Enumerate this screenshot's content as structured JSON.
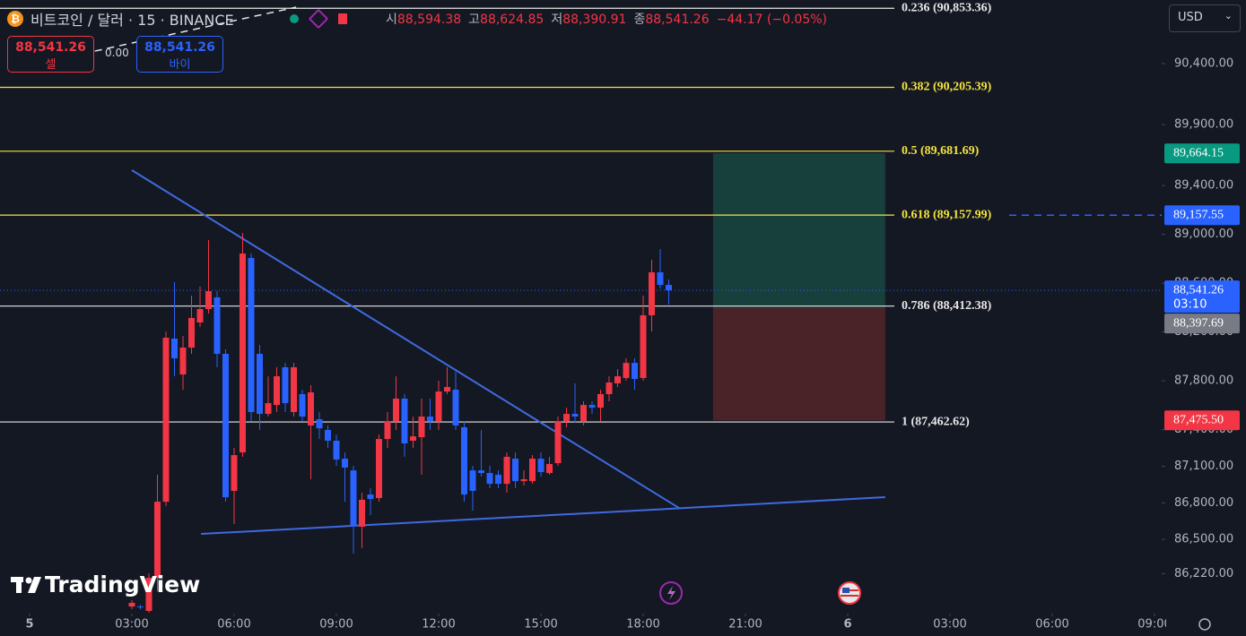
{
  "header": {
    "title": "비트코인 / 달러 · 15 · BINANCE",
    "ohlc": [
      {
        "label": "시",
        "value": "88,594.38"
      },
      {
        "label": "고",
        "value": "88,624.85"
      },
      {
        "label": "저",
        "value": "88,390.91"
      },
      {
        "label": "종",
        "value": "88,541.26"
      }
    ],
    "change": "−44.17 (−0.05%)"
  },
  "trade": {
    "sell_price": "88,541.26",
    "sell_label": "셀",
    "spread": "0.00",
    "buy_price": "88,541.26",
    "buy_label": "바이"
  },
  "currency": "USD",
  "brand": "TradingView",
  "chart_data": {
    "type": "candlestick",
    "up_color": "#f23645",
    "down_color": "#2962ff",
    "xlim": [
      -0.868,
      33.21
    ],
    "ylim": [
      85892,
      90921
    ],
    "xticks": [
      {
        "value": 0,
        "label": "5"
      },
      {
        "value": 3,
        "label": "03:00"
      },
      {
        "value": 6,
        "label": "06:00"
      },
      {
        "value": 9,
        "label": "09:00"
      },
      {
        "value": 12,
        "label": "12:00"
      },
      {
        "value": 15,
        "label": "15:00"
      },
      {
        "value": 18,
        "label": "18:00"
      },
      {
        "value": 21,
        "label": "21:00"
      },
      {
        "value": 24,
        "label": "6"
      },
      {
        "value": 27,
        "label": "03:00"
      },
      {
        "value": 30,
        "label": "06:00"
      },
      {
        "value": 33,
        "label": "09:00"
      }
    ],
    "yticks": [
      {
        "value": 90400,
        "label": "90,400.00"
      },
      {
        "value": 89900,
        "label": "89,900.00"
      },
      {
        "value": 89400,
        "label": "89,400.00"
      },
      {
        "value": 89000,
        "label": "89,000.00"
      },
      {
        "value": 88600,
        "label": "88,600.00"
      },
      {
        "value": 88200,
        "label": "88,200.00"
      },
      {
        "value": 87800,
        "label": "87,800.00"
      },
      {
        "value": 87400,
        "label": "87,400.00"
      },
      {
        "value": 87100,
        "label": "87,100.00"
      },
      {
        "value": 86800,
        "label": "86,800.00"
      },
      {
        "value": 86500,
        "label": "86,500.00"
      },
      {
        "value": 86220,
        "label": "86,220.00"
      }
    ],
    "x": [
      3,
      3.25,
      3.5,
      3.75,
      4,
      4.25,
      4.5,
      4.75,
      5,
      5.25,
      5.5,
      5.75,
      6,
      6.25,
      6.5,
      6.75,
      7,
      7.25,
      7.5,
      7.75,
      8,
      8.25,
      8.5,
      8.75,
      9,
      9.25,
      9.5,
      9.75,
      10,
      10.25,
      10.5,
      10.75,
      11,
      11.25,
      11.5,
      11.75,
      12,
      12.25,
      12.5,
      12.75,
      13,
      13.25,
      13.5,
      13.75,
      14,
      14.25,
      14.5,
      14.75,
      15,
      15.25,
      15.5,
      15.75,
      16,
      16.25,
      16.5,
      16.75,
      17,
      17.25,
      17.5,
      17.75,
      18,
      18.25,
      18.5,
      18.75
    ],
    "open": [
      85950,
      85950,
      85914,
      86185,
      86809,
      88146,
      87852,
      88072,
      88278,
      88388,
      88484,
      88021,
      86898,
      87213,
      88807,
      88021,
      87529,
      87602,
      87911,
      87544,
      87691,
      87434,
      87485,
      87397,
      87309,
      87162,
      87066,
      86604,
      86868,
      86839,
      87323,
      87470,
      87654,
      87309,
      87338,
      87507,
      87470,
      87712,
      87727,
      87419,
      87066,
      87066,
      87044,
      87030,
      86956,
      87162,
      86978,
      86978,
      87162,
      87044,
      87125,
      87470,
      87529,
      87470,
      87602,
      87580,
      87691,
      87779,
      87823,
      87947,
      87823,
      88337,
      88689,
      88586
    ],
    "high": [
      86002,
      85965,
      86222,
      87030,
      88204,
      88608,
      88168,
      88498,
      88572,
      88953,
      88535,
      88058,
      87250,
      89012,
      88843,
      88094,
      87837,
      87911,
      87947,
      87947,
      87727,
      87764,
      87544,
      87434,
      87360,
      87213,
      87103,
      86883,
      86920,
      87360,
      87544,
      87837,
      87691,
      87507,
      87654,
      87654,
      87801,
      87911,
      87874,
      87470,
      87103,
      87397,
      87103,
      87066,
      87213,
      87213,
      87066,
      87191,
      87213,
      87177,
      87507,
      87580,
      87779,
      87632,
      87632,
      87727,
      87837,
      87896,
      87984,
      87984,
      88498,
      88792,
      88880,
      88630
    ],
    "low": [
      85928,
      85928,
      85899,
      86075,
      86773,
      87837,
      87727,
      88021,
      88241,
      88351,
      87911,
      86809,
      86626,
      87177,
      87470,
      87397,
      87507,
      87544,
      87544,
      87507,
      87470,
      86993,
      87323,
      87250,
      87103,
      86809,
      86384,
      86428,
      86699,
      86809,
      87250,
      87397,
      87177,
      87250,
      87030,
      87397,
      87397,
      87691,
      87397,
      86809,
      86736,
      87015,
      86920,
      86920,
      86883,
      86920,
      86942,
      86956,
      87015,
      87030,
      87103,
      87419,
      87456,
      87434,
      87529,
      87470,
      87632,
      87749,
      87801,
      87727,
      87801,
      88204,
      88557,
      88425
    ],
    "close": [
      85980,
      85943,
      86185,
      86809,
      88153,
      87984,
      88072,
      88315,
      88388,
      88535,
      88021,
      86846,
      87191,
      88843,
      87544,
      87529,
      87617,
      87837,
      87617,
      87911,
      87507,
      87705,
      87411,
      87309,
      87155,
      87089,
      86611,
      86825,
      86832,
      87323,
      87470,
      87654,
      87287,
      87345,
      87507,
      87470,
      87712,
      87749,
      87434,
      86868,
      86898,
      87044,
      86956,
      86956,
      87177,
      86978,
      86993,
      87162,
      87052,
      87118,
      87470,
      87529,
      87507,
      87602,
      87580,
      87691,
      87786,
      87837,
      87947,
      87815,
      88337,
      88689,
      88586,
      88541.26
    ],
    "fib_levels": [
      {
        "value": 90853.36,
        "label": "0.236 (90,853.36)",
        "color": "#e6e6e6"
      },
      {
        "value": 90205.39,
        "label": "0.382 (90,205.39)",
        "color": "#f2e33c"
      },
      {
        "value": 89681.69,
        "label": "0.5 (89,681.69)",
        "color": "#f2e33c"
      },
      {
        "value": 89157.99,
        "label": "0.618 (89,157.99)",
        "color": "#f2e33c"
      },
      {
        "value": 88412.38,
        "label": "0.786 (88,412.38)",
        "color": "#e6e6e6"
      },
      {
        "value": 87462.62,
        "label": "1 (87,462.62)",
        "color": "#e6e6e6"
      }
    ],
    "trendlines": [
      {
        "x": [
          3.0,
          19.05
        ],
        "values": [
          89526,
          86758
        ],
        "color": "#3f6ae0"
      },
      {
        "x": [
          5.03,
          25.1
        ],
        "values": [
          86545,
          86846
        ],
        "color": "#3f6ae0"
      }
    ],
    "position": {
      "x": [
        20.05,
        25.1
      ],
      "entry": 88397.69,
      "target": 89664.15,
      "stop": 87475.5,
      "profit_color": "#17403c",
      "loss_color": "#4a2329"
    },
    "price_tags": [
      {
        "value": 89664.15,
        "label": "89,664.15",
        "color": "#089981"
      },
      {
        "value": 89157.55,
        "label": "89,157.55",
        "color": "#2962ff",
        "line": "dashed"
      },
      {
        "value": 88541.26,
        "label": "88,541.26",
        "countdown": "03:10",
        "color": "#2962ff",
        "line": "dotted"
      },
      {
        "value": 88397.69,
        "label": "88,397.69",
        "color": "#787b86"
      },
      {
        "value": 87475.5,
        "label": "87,475.50",
        "color": "#f23645"
      }
    ]
  }
}
